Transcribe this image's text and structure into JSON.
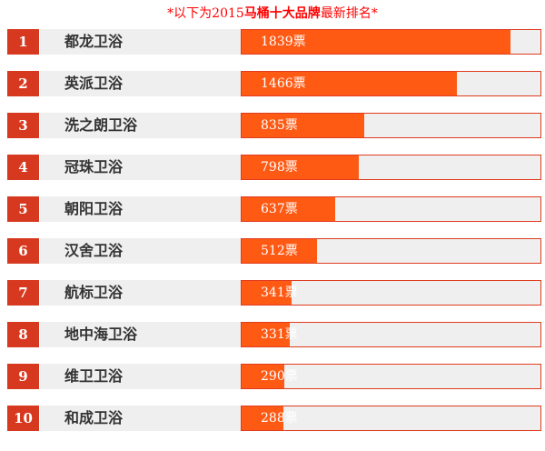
{
  "header": {
    "prefix": "*以下为2015",
    "highlight": "马桶十大品牌",
    "suffix": "最新排名*"
  },
  "scale_max": 2040,
  "colors": {
    "rank_bg": "#d6391f",
    "fill": "#ff5a14",
    "border": "#e03c1e",
    "title": "#ff0000"
  },
  "rankings": [
    {
      "rank": "1",
      "name": "都龙卫浴",
      "votes": 1839,
      "label": "1839票"
    },
    {
      "rank": "2",
      "name": "英派卫浴",
      "votes": 1466,
      "label": "1466票"
    },
    {
      "rank": "3",
      "name": "洗之朗卫浴",
      "votes": 835,
      "label": "835票"
    },
    {
      "rank": "4",
      "name": "冠珠卫浴",
      "votes": 798,
      "label": "798票"
    },
    {
      "rank": "5",
      "name": "朝阳卫浴",
      "votes": 637,
      "label": "637票"
    },
    {
      "rank": "6",
      "name": "汉舍卫浴",
      "votes": 512,
      "label": "512票"
    },
    {
      "rank": "7",
      "name": "航标卫浴",
      "votes": 341,
      "label": "341票"
    },
    {
      "rank": "8",
      "name": "地中海卫浴",
      "votes": 331,
      "label": "331票"
    },
    {
      "rank": "9",
      "name": "维卫卫浴",
      "votes": 290,
      "label": "290票"
    },
    {
      "rank": "10",
      "name": "和成卫浴",
      "votes": 288,
      "label": "288票"
    }
  ]
}
